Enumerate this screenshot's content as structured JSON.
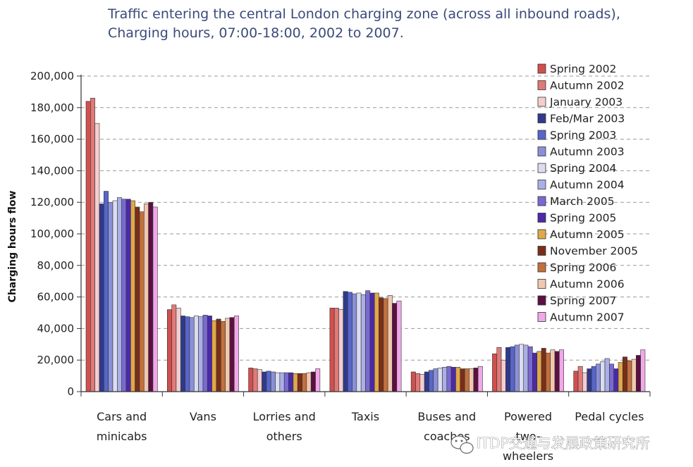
{
  "chart_data": {
    "type": "bar",
    "title_lines": [
      "Traffic entering the central London charging zone (across all inbound roads),",
      "Charging hours, 07:00-18:00, 2002 to 2007."
    ],
    "ylabel": "Charging hours flow",
    "xlabel": "",
    "ylim": [
      0,
      200000
    ],
    "yticks": [
      0,
      20000,
      40000,
      60000,
      80000,
      100000,
      120000,
      140000,
      160000,
      180000,
      200000
    ],
    "ytick_labels": [
      "0",
      "20,000",
      "40,000",
      "60,000",
      "80,000",
      "100,000",
      "120,000",
      "140,000",
      "160,000",
      "180,000",
      "200,000"
    ],
    "grid": "horizontal-dashed",
    "legend_position": "right",
    "categories": [
      [
        "Cars and",
        "minicabs"
      ],
      [
        "Vans"
      ],
      [
        "Lorries and",
        "others"
      ],
      [
        "Taxis"
      ],
      [
        "Buses and",
        "coaches"
      ],
      [
        "Powered",
        "two-",
        "wheelers"
      ],
      [
        "Pedal cycles"
      ]
    ],
    "series": [
      {
        "name": "Spring 2002",
        "color": "#d0504e",
        "values": [
          184000,
          52000,
          15000,
          53000,
          12500,
          24000,
          13000
        ]
      },
      {
        "name": "Autumn 2002",
        "color": "#e07a78",
        "values": [
          186000,
          55000,
          14500,
          53000,
          11500,
          28000,
          16000
        ]
      },
      {
        "name": "January 2003",
        "color": "#f4cece",
        "values": [
          170000,
          53000,
          14000,
          52000,
          11000,
          20000,
          12000
        ]
      },
      {
        "name": "Feb/Mar 2003",
        "color": "#2e3a8c",
        "values": [
          119000,
          48000,
          12500,
          63500,
          12500,
          28000,
          14500
        ]
      },
      {
        "name": "Spring 2003",
        "color": "#5965c8",
        "values": [
          127000,
          47500,
          13000,
          63000,
          13500,
          28500,
          16000
        ]
      },
      {
        "name": "Autumn 2003",
        "color": "#8a90d8",
        "values": [
          120000,
          47000,
          12500,
          62000,
          14500,
          29500,
          17500
        ]
      },
      {
        "name": "Spring 2004",
        "color": "#dcdcf0",
        "values": [
          121000,
          48000,
          12000,
          62500,
          15000,
          30000,
          19000
        ]
      },
      {
        "name": "Autumn 2004",
        "color": "#aab0e6",
        "values": [
          123000,
          47500,
          12000,
          61500,
          15500,
          29500,
          21000
        ]
      },
      {
        "name": "March 2005",
        "color": "#7a6ad0",
        "values": [
          122000,
          48500,
          12000,
          64000,
          16000,
          28500,
          17500
        ]
      },
      {
        "name": "Spring 2005",
        "color": "#4a2aaa",
        "values": [
          122000,
          48000,
          12000,
          62500,
          15500,
          24500,
          14500
        ]
      },
      {
        "name": "Autumn 2005",
        "color": "#e0a848",
        "values": [
          121000,
          45000,
          11500,
          62500,
          15500,
          25500,
          18500
        ]
      },
      {
        "name": "November 2005",
        "color": "#7a2e1a",
        "values": [
          117000,
          46000,
          11500,
          59500,
          14500,
          27500,
          22000
        ]
      },
      {
        "name": "Spring 2006",
        "color": "#c2703c",
        "values": [
          114000,
          44500,
          11500,
          59000,
          14500,
          24500,
          19500
        ]
      },
      {
        "name": "Autumn 2006",
        "color": "#f0c8b0",
        "values": [
          119000,
          46500,
          12000,
          61000,
          14500,
          26500,
          20500
        ]
      },
      {
        "name": "Spring 2007",
        "color": "#5a1040",
        "values": [
          120000,
          47000,
          12500,
          56000,
          15000,
          25500,
          23000
        ]
      },
      {
        "name": "Autumn 2007",
        "color": "#f0a8e8",
        "values": [
          117000,
          48000,
          14500,
          57500,
          16000,
          26500,
          26500
        ]
      }
    ]
  },
  "watermark": {
    "text": "ITDP交通与发展政策研究所",
    "icon": "wechat-icon"
  }
}
